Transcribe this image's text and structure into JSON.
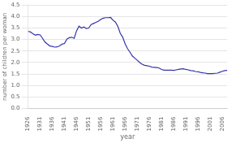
{
  "chart_data": {
    "type": "line",
    "xlabel": "year",
    "ylabel": "number of children per woman",
    "color": "#3333aa",
    "grid": "y",
    "xlim": [
      1926,
      2008
    ],
    "ylim": [
      0.0,
      4.5
    ],
    "xticks": [
      1926,
      1931,
      1936,
      1941,
      1946,
      1951,
      1956,
      1961,
      1966,
      1971,
      1976,
      1981,
      1986,
      1991,
      1996,
      2001,
      2006
    ],
    "yticks": [
      {
        "value": 0.0,
        "label": "0.0"
      },
      0.5,
      {
        "value": 1.0,
        "label": "1.0"
      },
      1.5,
      {
        "value": 2.0,
        "label": "2.0"
      },
      2.5,
      {
        "value": 3.0,
        "label": "3.0"
      },
      3.5,
      {
        "value": 4.0,
        "label": "4.0"
      },
      4.5
    ],
    "x": [
      1926,
      1927,
      1928,
      1929,
      1930,
      1931,
      1932,
      1933,
      1934,
      1935,
      1936,
      1937,
      1938,
      1939,
      1940,
      1941,
      1942,
      1943,
      1944,
      1945,
      1946,
      1947,
      1948,
      1949,
      1950,
      1951,
      1952,
      1953,
      1954,
      1955,
      1956,
      1957,
      1958,
      1959,
      1960,
      1961,
      1962,
      1963,
      1964,
      1965,
      1966,
      1967,
      1968,
      1969,
      1970,
      1971,
      1972,
      1973,
      1974,
      1975,
      1976,
      1977,
      1978,
      1979,
      1980,
      1981,
      1982,
      1983,
      1984,
      1985,
      1986,
      1987,
      1988,
      1989,
      1990,
      1991,
      1992,
      1993,
      1994,
      1995,
      1996,
      1997,
      1998,
      1999,
      2000,
      2001,
      2002,
      2003,
      2004,
      2005,
      2006,
      2007,
      2008
    ],
    "values": [
      3.36,
      3.33,
      3.25,
      3.19,
      3.22,
      3.2,
      3.05,
      2.89,
      2.8,
      2.72,
      2.7,
      2.67,
      2.68,
      2.72,
      2.8,
      2.83,
      3.02,
      3.08,
      3.1,
      3.05,
      3.38,
      3.58,
      3.5,
      3.55,
      3.48,
      3.5,
      3.65,
      3.7,
      3.75,
      3.8,
      3.88,
      3.93,
      3.95,
      3.95,
      3.96,
      3.84,
      3.76,
      3.57,
      3.27,
      3.1,
      2.81,
      2.6,
      2.45,
      2.28,
      2.19,
      2.1,
      2.0,
      1.93,
      1.88,
      1.86,
      1.84,
      1.8,
      1.79,
      1.78,
      1.76,
      1.7,
      1.67,
      1.67,
      1.67,
      1.67,
      1.66,
      1.68,
      1.7,
      1.72,
      1.73,
      1.7,
      1.68,
      1.65,
      1.64,
      1.61,
      1.6,
      1.57,
      1.55,
      1.54,
      1.52,
      1.52,
      1.52,
      1.53,
      1.54,
      1.58,
      1.62,
      1.65,
      1.66
    ]
  }
}
